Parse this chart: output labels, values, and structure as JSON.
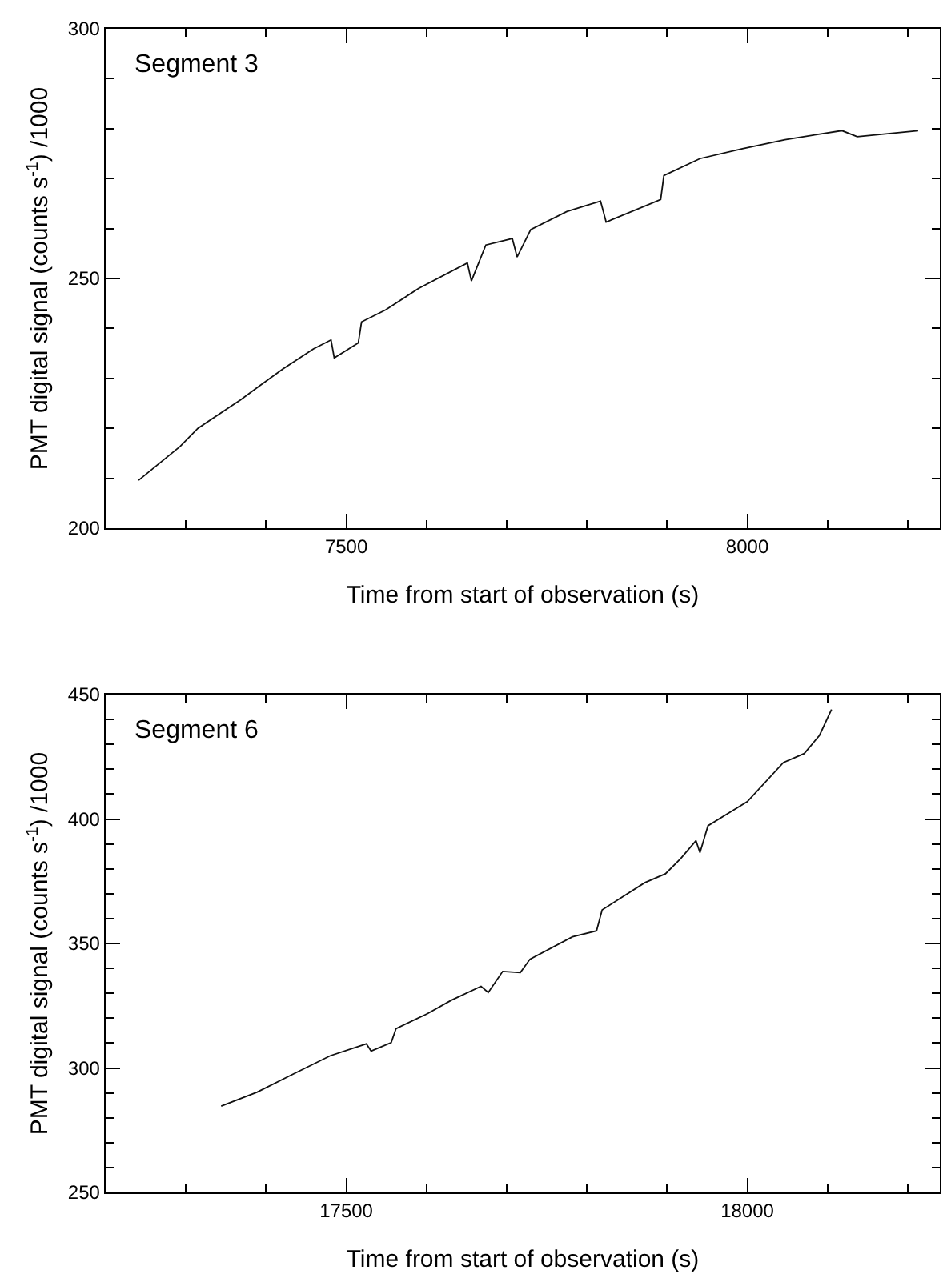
{
  "chart_data": [
    {
      "type": "line",
      "title": "Segment 3",
      "xlabel": "Time from start of observation (s)",
      "ylabel": "PMT digital signal (counts s$^{-1}$) /1000",
      "xlim": [
        7200,
        8240
      ],
      "ylim": [
        200,
        300
      ],
      "xticks": [
        {
          "value": 7300,
          "label": null
        },
        {
          "value": 7400,
          "label": null
        },
        7500,
        {
          "value": 7600,
          "label": null
        },
        {
          "value": 7700,
          "label": null
        },
        {
          "value": 7800,
          "label": null
        },
        {
          "value": 7900,
          "label": null
        },
        8000,
        {
          "value": 8100,
          "label": null
        },
        {
          "value": 8200,
          "label": null
        }
      ],
      "yticks": [
        200,
        {
          "value": 210,
          "label": null
        },
        {
          "value": 220,
          "label": null
        },
        {
          "value": 230,
          "label": null
        },
        {
          "value": 240,
          "label": null
        },
        250,
        {
          "value": 260,
          "label": null
        },
        {
          "value": 270,
          "label": null
        },
        {
          "value": 280,
          "label": null
        },
        {
          "value": 290,
          "label": null
        },
        300
      ],
      "marker": "none",
      "line_style": "solid",
      "series": [
        {
          "color": "#111111",
          "x": [
            7241,
            7293,
            7315,
            7368,
            7391,
            7421,
            7459,
            7481,
            7485,
            7515,
            7519,
            7549,
            7590,
            7651,
            7656,
            7674,
            7707,
            7713,
            7730,
            7775,
            7817,
            7824,
            7892,
            7896,
            7941,
            7994,
            8047,
            8118,
            8137,
            8213
          ],
          "values": [
            209.6,
            216.4,
            220,
            225.7,
            228.4,
            231.9,
            235.9,
            237.7,
            234.1,
            237.1,
            241.3,
            243.7,
            248,
            253.1,
            249.5,
            256.7,
            258.0,
            254.3,
            259.8,
            263.4,
            265.5,
            261.3,
            265.8,
            270.6,
            274.0,
            276.0,
            277.8,
            279.6,
            278.4,
            279.6
          ]
        }
      ]
    },
    {
      "type": "line",
      "title": "Segment 6",
      "xlabel": "Time from start of observation (s)",
      "ylabel": "PMT digital signal (counts s$^{-1}$) /1000",
      "xlim": [
        17200,
        18240
      ],
      "ylim": [
        250,
        450
      ],
      "xticks": [
        {
          "value": 17300,
          "label": null
        },
        {
          "value": 17400,
          "label": null
        },
        17500,
        {
          "value": 17600,
          "label": null
        },
        {
          "value": 17700,
          "label": null
        },
        {
          "value": 17800,
          "label": null
        },
        {
          "value": 17900,
          "label": null
        },
        18000,
        {
          "value": 18100,
          "label": null
        },
        {
          "value": 18200,
          "label": null
        }
      ],
      "yticks": [
        250,
        {
          "value": 260,
          "label": null
        },
        {
          "value": 270,
          "label": null
        },
        {
          "value": 280,
          "label": null
        },
        {
          "value": 290,
          "label": null
        },
        300,
        {
          "value": 310,
          "label": null
        },
        {
          "value": 320,
          "label": null
        },
        {
          "value": 330,
          "label": null
        },
        {
          "value": 340,
          "label": null
        },
        350,
        {
          "value": 360,
          "label": null
        },
        {
          "value": 370,
          "label": null
        },
        {
          "value": 380,
          "label": null
        },
        {
          "value": 390,
          "label": null
        },
        400,
        {
          "value": 410,
          "label": null
        },
        {
          "value": 420,
          "label": null
        },
        {
          "value": 430,
          "label": null
        },
        {
          "value": 440,
          "label": null
        },
        450
      ],
      "marker": "none",
      "line_style": "solid",
      "series": [
        {
          "color": "#111111",
          "x": [
            17344,
            17389,
            17434,
            17480,
            17525,
            17531,
            17556,
            17562,
            17601,
            17631,
            17668,
            17677,
            17695,
            17717,
            17729,
            17782,
            17812,
            17819,
            17872,
            17898,
            17917,
            17936,
            17941,
            17951,
            18000,
            18045,
            18071,
            18090,
            18105
          ],
          "values": [
            284.7,
            290.3,
            297.6,
            304.9,
            309.7,
            306.8,
            310.2,
            315.8,
            321.8,
            327.2,
            332.8,
            330.3,
            338.8,
            338.3,
            343.7,
            352.7,
            355.1,
            363.5,
            374.4,
            378.0,
            384.1,
            391.3,
            386.5,
            397.3,
            407.0,
            422.7,
            426.3,
            433.6,
            444.0
          ]
        }
      ]
    }
  ]
}
